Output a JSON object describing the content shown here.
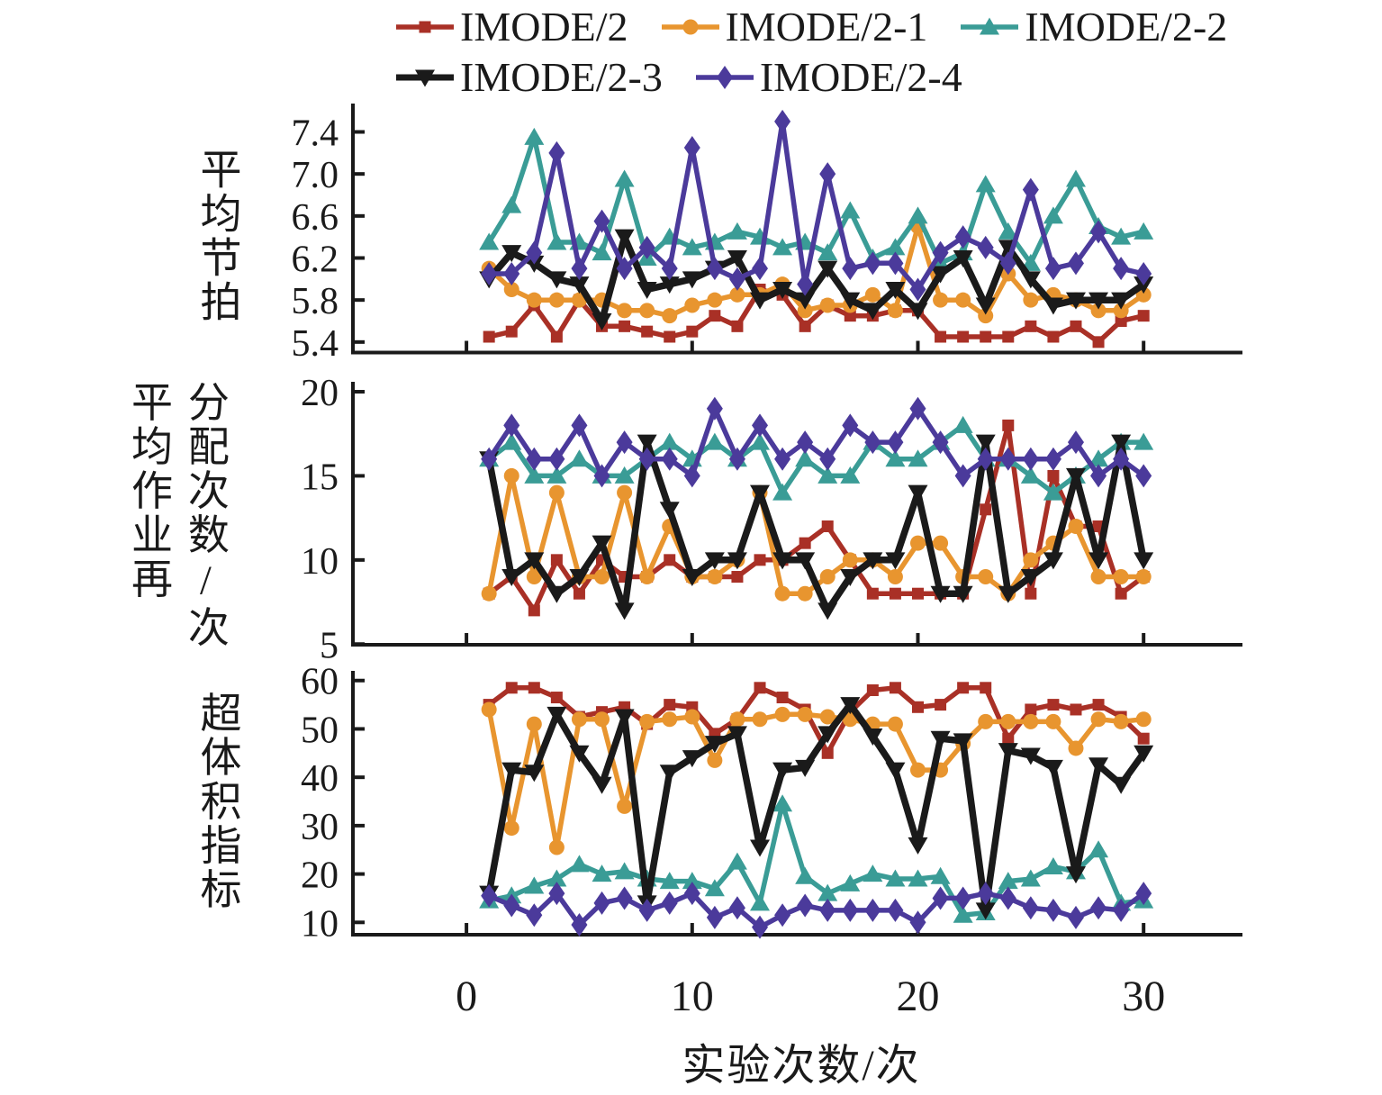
{
  "legend": {
    "items": [
      {
        "label": "IMODE/2",
        "color": "#A93026",
        "marker": "square"
      },
      {
        "label": "IMODE/2-1",
        "color": "#E8952F",
        "marker": "circle"
      },
      {
        "label": "IMODE/2-2",
        "color": "#3A9C96",
        "marker": "triangle-up"
      },
      {
        "label": "IMODE/2-3",
        "color": "#1A1A1A",
        "marker": "triangle-down"
      },
      {
        "label": "IMODE/2-4",
        "color": "#4B3A9B",
        "marker": "diamond"
      }
    ]
  },
  "chart_data": {
    "type": "line",
    "x_label": "实验次数/次",
    "x_ticks": [
      0,
      10,
      20,
      30
    ],
    "x_range": [
      -5.03,
      34.38
    ],
    "x": [
      1,
      2,
      3,
      4,
      5,
      6,
      7,
      8,
      9,
      10,
      11,
      12,
      13,
      14,
      15,
      16,
      17,
      18,
      19,
      20,
      21,
      22,
      23,
      24,
      25,
      26,
      27,
      28,
      29,
      30
    ],
    "subplots": [
      {
        "id": "average-takt",
        "ylabel": "平均节拍",
        "ylabel_lines": [
          "平均节拍"
        ],
        "y_ticks": [
          5.4,
          5.8,
          6.2,
          6.6,
          7.0,
          7.4
        ],
        "y_tick_decimals": 1,
        "y_range": [
          5.3,
          7.67
        ],
        "grid": false,
        "series": [
          {
            "name": "IMODE/2",
            "values": [
              5.45,
              5.5,
              5.75,
              5.45,
              5.8,
              5.55,
              5.55,
              5.5,
              5.45,
              5.5,
              5.65,
              5.55,
              5.9,
              5.85,
              5.55,
              5.75,
              5.65,
              5.65,
              5.7,
              5.7,
              5.45,
              5.45,
              5.45,
              5.45,
              5.55,
              5.45,
              5.55,
              5.4,
              5.6,
              5.65
            ]
          },
          {
            "name": "IMODE/2-1",
            "values": [
              6.1,
              5.9,
              5.8,
              5.8,
              5.8,
              5.8,
              5.7,
              5.7,
              5.65,
              5.75,
              5.8,
              5.85,
              5.85,
              5.95,
              5.7,
              5.75,
              5.75,
              5.85,
              5.7,
              6.5,
              5.8,
              5.8,
              5.65,
              6.05,
              5.8,
              5.85,
              5.8,
              5.7,
              5.7,
              5.85
            ]
          },
          {
            "name": "IMODE/2-2",
            "values": [
              6.35,
              6.7,
              7.35,
              6.35,
              6.35,
              6.25,
              6.95,
              6.2,
              6.4,
              6.3,
              6.35,
              6.45,
              6.4,
              6.3,
              6.35,
              6.25,
              6.65,
              6.2,
              6.3,
              6.6,
              6.15,
              6.25,
              6.9,
              6.45,
              6.15,
              6.6,
              6.95,
              6.5,
              6.4,
              6.45
            ]
          },
          {
            "name": "IMODE/2-3",
            "values": [
              6.0,
              6.25,
              6.15,
              6.0,
              5.95,
              5.6,
              6.4,
              5.9,
              5.95,
              6.0,
              6.1,
              6.2,
              5.8,
              5.9,
              5.8,
              6.1,
              5.8,
              5.7,
              5.9,
              5.7,
              6.05,
              6.2,
              5.75,
              6.3,
              6.0,
              5.75,
              5.8,
              5.8,
              5.8,
              5.95
            ]
          },
          {
            "name": "IMODE/2-4",
            "values": [
              6.05,
              6.05,
              6.25,
              7.2,
              6.1,
              6.55,
              6.1,
              6.3,
              6.1,
              7.25,
              6.1,
              6.0,
              6.1,
              7.5,
              5.95,
              7.0,
              6.1,
              6.15,
              6.15,
              5.9,
              6.25,
              6.4,
              6.3,
              6.15,
              6.85,
              6.1,
              6.15,
              6.45,
              6.1,
              6.05
            ]
          }
        ]
      },
      {
        "id": "average-job-reallocation",
        "ylabel": "平均作业再分配次数/次",
        "ylabel_lines": [
          "平均作业再",
          "分配次数/次"
        ],
        "y_ticks": [
          5,
          10,
          15,
          20
        ],
        "y_tick_decimals": 0,
        "y_range": [
          4.96,
          20.59
        ],
        "grid": false,
        "series": [
          {
            "name": "IMODE/2",
            "values": [
              8,
              9,
              7,
              10,
              8,
              10,
              9,
              9,
              10,
              9,
              9,
              9,
              10,
              10,
              11,
              12,
              10,
              8,
              8,
              8,
              8,
              8,
              13,
              18,
              8,
              15,
              12,
              12,
              8,
              9
            ]
          },
          {
            "name": "IMODE/2-1",
            "values": [
              8,
              15,
              9,
              14,
              9,
              9,
              14,
              9,
              12,
              9,
              9,
              10,
              14,
              8,
              8,
              9,
              10,
              10,
              9,
              11,
              11,
              9,
              9,
              8,
              10,
              11,
              12,
              9,
              9,
              9
            ]
          },
          {
            "name": "IMODE/2-2",
            "values": [
              16,
              17,
              15,
              15,
              16,
              15,
              15,
              16,
              17,
              16,
              17,
              16,
              17,
              14,
              16,
              15,
              15,
              17,
              16,
              16,
              17,
              18,
              16,
              16,
              15,
              14,
              15,
              16,
              17,
              17
            ]
          },
          {
            "name": "IMODE/2-3",
            "values": [
              16,
              9,
              10,
              8,
              9,
              11,
              7,
              17,
              13,
              9,
              10,
              10,
              14,
              10,
              10,
              7,
              9,
              10,
              10,
              14,
              8,
              8,
              17,
              8,
              9,
              10,
              15,
              10,
              17,
              10
            ]
          },
          {
            "name": "IMODE/2-4",
            "values": [
              16,
              18,
              16,
              16,
              18,
              15,
              17,
              16,
              16,
              15,
              19,
              16,
              18,
              16,
              17,
              16,
              18,
              17,
              17,
              19,
              17,
              15,
              16,
              16,
              16,
              16,
              17,
              15,
              16,
              15
            ]
          }
        ]
      },
      {
        "id": "hypervolume-indicator",
        "ylabel": "超体积指标",
        "ylabel_lines": [
          "超体积指标"
        ],
        "y_ticks": [
          10,
          20,
          30,
          40,
          50,
          60
        ],
        "y_tick_decimals": 0,
        "y_range": [
          7.45,
          62.0
        ],
        "grid": false,
        "series": [
          {
            "name": "IMODE/2",
            "values": [
              55,
              58.5,
              58.5,
              56.5,
              52.5,
              53.5,
              54.5,
              51,
              55,
              54.5,
              49,
              52,
              58.5,
              56.5,
              54,
              45,
              53.5,
              58,
              58.5,
              54.5,
              55,
              58.5,
              58.5,
              48,
              54,
              55,
              54,
              55,
              52.5,
              48
            ]
          },
          {
            "name": "IMODE/2-1",
            "values": [
              54,
              29.5,
              51,
              25.5,
              52,
              52,
              34,
              51.5,
              52,
              52.5,
              43.5,
              52,
              52,
              53,
              53,
              52.5,
              52,
              51,
              51,
              41.5,
              41.5,
              47,
              51.5,
              51.5,
              51.5,
              51.5,
              46,
              52,
              51.5,
              52
            ]
          },
          {
            "name": "IMODE/2-2",
            "values": [
              14.5,
              15.5,
              17.5,
              19,
              22,
              20,
              20.5,
              19,
              18.5,
              18.5,
              17,
              22.5,
              14,
              34.5,
              19.5,
              16,
              18,
              20,
              19,
              19,
              19.5,
              11.5,
              12,
              18.5,
              19,
              21.5,
              20.5,
              25,
              14,
              14.5
            ]
          },
          {
            "name": "IMODE/2-3",
            "values": [
              16,
              41.5,
              41,
              53,
              45,
              38.5,
              52.5,
              14,
              41,
              44,
              47,
              49,
              25.5,
              41.5,
              42,
              49,
              55,
              48.5,
              41.5,
              26,
              48,
              47.5,
              12.5,
              45.5,
              44.5,
              42,
              20,
              42.5,
              38.5,
              45
            ]
          },
          {
            "name": "IMODE/2-4",
            "values": [
              15.5,
              13.5,
              11.5,
              16,
              9.5,
              14,
              15,
              12.5,
              14,
              16,
              11,
              13,
              9,
              11.5,
              13.5,
              12.5,
              12.5,
              12.5,
              12.5,
              10,
              15,
              15,
              16,
              15,
              13,
              12.5,
              11,
              13,
              12.5,
              16
            ]
          }
        ]
      }
    ]
  }
}
